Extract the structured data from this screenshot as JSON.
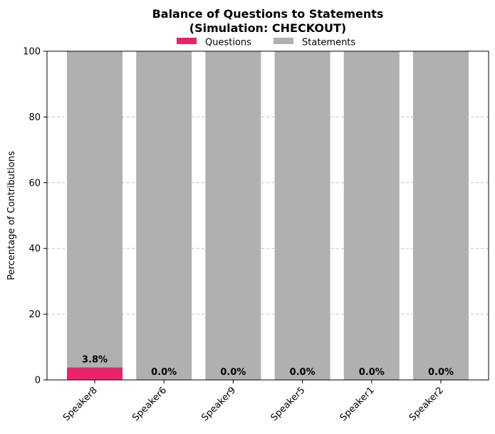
{
  "chart_data": {
    "type": "bar",
    "stacked": true,
    "title": "Balance of Questions to Statements",
    "subtitle": "(Simulation: CHECKOUT)",
    "xlabel": "",
    "ylabel": "Percentage of Contributions",
    "ylim": [
      0,
      100
    ],
    "yticks": [
      0,
      20,
      40,
      60,
      80,
      100
    ],
    "categories": [
      "Speaker8",
      "Speaker6",
      "Speaker9",
      "Speaker5",
      "Speaker1",
      "Speaker2"
    ],
    "series": [
      {
        "name": "Questions",
        "color": "#e8246a",
        "values": [
          3.8,
          0.0,
          0.0,
          0.0,
          0.0,
          0.0
        ]
      },
      {
        "name": "Statements",
        "color": "#b0b0b0",
        "values": [
          96.2,
          100.0,
          100.0,
          100.0,
          100.0,
          100.0
        ]
      }
    ],
    "data_labels": [
      "3.8%",
      "0.0%",
      "0.0%",
      "0.0%",
      "0.0%",
      "0.0%"
    ],
    "grid": "horizontal-dashed",
    "legend_position": "top-center"
  }
}
